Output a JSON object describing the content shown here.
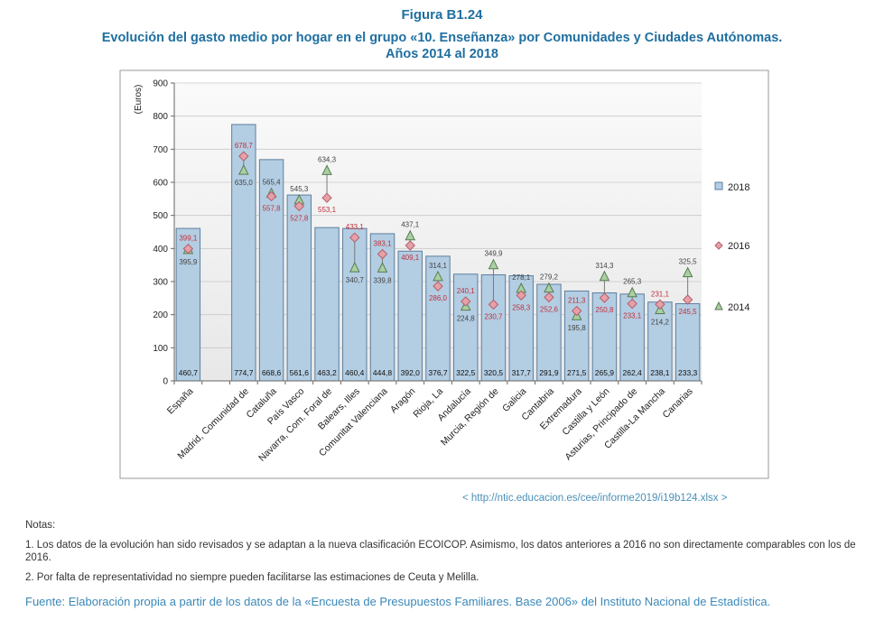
{
  "figure": {
    "label": "Figura B1.24",
    "title_line1": "Evolución del gasto medio por hogar en el grupo «10. Enseñanza» por Comunidades y Ciudades Autónomas.",
    "title_line2": "Años 2014 al 2018"
  },
  "chart_data": {
    "type": "bar",
    "ylabel": "(Euros)",
    "ylim": [
      0,
      900
    ],
    "yticks": [
      0,
      100,
      200,
      300,
      400,
      500,
      600,
      700,
      800,
      900
    ],
    "grid": true,
    "legend_position": "right",
    "categories": [
      "España",
      "",
      "Madrid, Comunidad de",
      "Cataluña",
      "País Vasco",
      "Navarra, Com. Foral de",
      "Balears, Illes",
      "Comunitat Valenciana",
      "Aragón",
      "Rioja, La",
      "Andalucía",
      "Murcia, Región de",
      "Galicia",
      "Cantabria",
      "Extremadura",
      "Castilla y León",
      "Asturias, Principado de",
      "Castilla-La Mancha",
      "Canarias"
    ],
    "series": [
      {
        "name": "2018",
        "kind": "bar",
        "color": "#b3cde3",
        "values": [
          460.7,
          null,
          774.7,
          668.6,
          561.6,
          463.2,
          460.4,
          444.8,
          392.0,
          376.7,
          322.5,
          320.5,
          317.7,
          291.9,
          271.5,
          265.9,
          262.4,
          238.1,
          233.3
        ],
        "labels": [
          "460,7",
          "",
          "774,7",
          "668,6",
          "561,6",
          "463,2",
          "460,4",
          "444,8",
          "392,0",
          "376,7",
          "322,5",
          "320,5",
          "317,7",
          "291,9",
          "271,5",
          "265,9",
          "262,4",
          "238,1",
          "233,3"
        ]
      },
      {
        "name": "2016",
        "kind": "marker-diamond",
        "color": "#e8a0a8",
        "values": [
          399.1,
          null,
          678.7,
          557.8,
          527.8,
          553.1,
          433.1,
          383.1,
          409.1,
          286.0,
          240.1,
          230.7,
          258.3,
          252.6,
          211.3,
          250.8,
          233.1,
          231.1,
          245.5
        ],
        "labels": [
          "399,1",
          "",
          "678,7",
          "557,8",
          "527,8",
          "553,1",
          "433,1",
          "383,1",
          "409,1",
          "286,0",
          "240,1",
          "230,7",
          "258,3",
          "252,6",
          "211,3",
          "250,8",
          "233,1",
          "231,1",
          "245,5"
        ]
      },
      {
        "name": "2014",
        "kind": "marker-triangle",
        "color": "#a8d0a0",
        "values": [
          395.9,
          null,
          635.0,
          565.4,
          545.3,
          634.3,
          340.7,
          339.8,
          437.1,
          314.1,
          224.8,
          349.9,
          278.1,
          279.2,
          195.8,
          314.3,
          265.3,
          214.2,
          325.5
        ],
        "labels": [
          "395,9",
          "",
          "635,0",
          "565,4",
          "545,3",
          "634,3",
          "340,7",
          "339,8",
          "437,1",
          "314,1",
          "224,8",
          "349,9",
          "278,1",
          "279,2",
          "195,8",
          "314,3",
          "265,3",
          "214,2",
          "325,5"
        ]
      }
    ]
  },
  "source_link": "< http://ntic.educacion.es/cee/informe2019/i19b124.xlsx >",
  "notes": {
    "heading": "Notas:",
    "items": [
      "1. Los datos de la evolución han sido revisados y se adaptan a la nueva clasificación ECOICOP. Asimismo, los datos anteriores a 2016 no son directamente comparables con los de 2016.",
      "2. Por falta de representatividad no siempre pueden facilitarse las estimaciones de Ceuta y Melilla."
    ]
  },
  "fuente": "Fuente: Elaboración propia a partir de los datos de la «Encuesta de Presupuestos Familiares. Base 2006» del Instituto Nacional de Estadística."
}
